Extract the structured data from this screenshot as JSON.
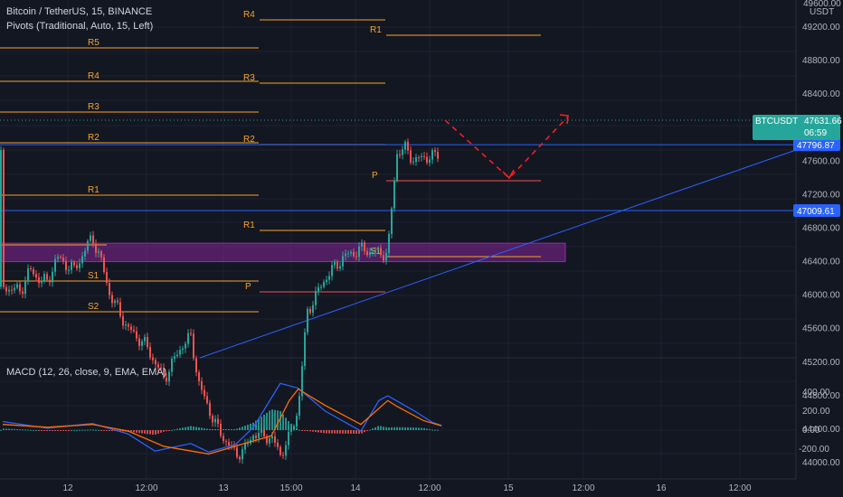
{
  "header": {
    "symbol_title": "Bitcoin / TetherUS, 15, BINANCE",
    "pivots_title": "Pivots (Traditional, Auto, 15, Left)",
    "macd_title": "MACD (12, 26, close, 9, EMA, EMA)"
  },
  "price_axis": {
    "unit": "USDT",
    "top_partial": "49600.00",
    "ticks": [
      "49200.00",
      "48800.00",
      "48400.00",
      "48000.00",
      "47600.00",
      "47200.00",
      "46800.00",
      "46400.00",
      "46000.00",
      "45600.00",
      "45200.00",
      "44800.00",
      "44400.00",
      "44000.00"
    ],
    "upper_line_label": "47796.87",
    "lower_line_label": "47009.61",
    "last_symbol": "BTCUSDT",
    "last_price": "47631.66",
    "countdown": "06:59"
  },
  "macd_axis": {
    "ticks": [
      "400.00",
      "200.00",
      "0.00",
      "-200.00"
    ]
  },
  "time_axis": {
    "ticks": [
      "12",
      "12:00",
      "13",
      "15:00",
      "14",
      "12:00",
      "15",
      "12:00",
      "16",
      "12:00"
    ]
  },
  "pivot_labels": {
    "d1": [
      "R5",
      "R4",
      "R3",
      "R2",
      "R1",
      "S1",
      "S2"
    ],
    "d2": [
      "R4",
      "R3",
      "R2",
      "P",
      "R1"
    ],
    "d3": [
      "R1",
      "P",
      "S1"
    ]
  },
  "colors": {
    "background": "#131722",
    "up": "#26a69a",
    "down": "#ef5350",
    "pivot": "#f7a427",
    "pivot_p": "#ef5350",
    "trend": "#2962ff",
    "zone": "#9c27b0",
    "projection": "#ff1f1f",
    "macd": "#2962ff",
    "signal": "#ff6d00"
  },
  "chart_data": {
    "type": "candlestick",
    "title": "Bitcoin / TetherUS, 15, BINANCE",
    "y_range": [
      43850,
      49700
    ],
    "close_path": [
      [
        0,
        46100
      ],
      [
        2,
        46050
      ],
      [
        3,
        46300
      ],
      [
        4,
        46200
      ],
      [
        5,
        46150
      ],
      [
        6,
        46450
      ],
      [
        8,
        46300
      ],
      [
        9,
        46500
      ],
      [
        10,
        46700
      ],
      [
        11,
        46400
      ],
      [
        12,
        46000
      ],
      [
        13,
        45800
      ],
      [
        14,
        45600
      ],
      [
        16,
        45400
      ],
      [
        18,
        45000
      ],
      [
        19,
        45200
      ],
      [
        20,
        45400
      ],
      [
        21,
        45500
      ],
      [
        22,
        44900
      ],
      [
        24,
        44400
      ],
      [
        26,
        44100
      ],
      [
        27,
        44150
      ],
      [
        28,
        44350
      ],
      [
        30,
        44300
      ],
      [
        31,
        44100
      ],
      [
        32,
        44300
      ],
      [
        33,
        44650
      ],
      [
        34,
        45800
      ],
      [
        35,
        46000
      ],
      [
        36,
        46200
      ],
      [
        38,
        46450
      ],
      [
        40,
        46550
      ],
      [
        42,
        46500
      ],
      [
        43,
        46500
      ],
      [
        44,
        47700
      ],
      [
        45,
        47750
      ],
      [
        46,
        47600
      ],
      [
        47,
        47650
      ],
      [
        48,
        47650
      ],
      [
        49,
        47700
      ],
      [
        50,
        47600
      ],
      [
        51,
        47650
      ]
    ],
    "horizontal_lines": [
      47796.87,
      47009.61
    ],
    "zone": [
      46620,
      46400
    ],
    "macd": {
      "y_range": [
        -290,
        500
      ],
      "macd_path": [
        [
          0,
          90
        ],
        [
          5,
          20
        ],
        [
          10,
          70
        ],
        [
          14,
          -40
        ],
        [
          17,
          -220
        ],
        [
          21,
          -140
        ],
        [
          23,
          -230
        ],
        [
          26,
          -150
        ],
        [
          28,
          30
        ],
        [
          31,
          490
        ],
        [
          33,
          440
        ],
        [
          36,
          200
        ],
        [
          40,
          -10
        ],
        [
          42,
          310
        ],
        [
          43,
          360
        ],
        [
          46,
          200
        ],
        [
          48,
          80
        ],
        [
          49,
          50
        ]
      ],
      "signal_path": [
        [
          0,
          60
        ],
        [
          5,
          30
        ],
        [
          10,
          60
        ],
        [
          14,
          -10
        ],
        [
          18,
          -170
        ],
        [
          23,
          -250
        ],
        [
          27,
          -140
        ],
        [
          30,
          -60
        ],
        [
          32,
          310
        ],
        [
          33,
          430
        ],
        [
          36,
          260
        ],
        [
          40,
          60
        ],
        [
          43,
          310
        ],
        [
          44,
          250
        ],
        [
          47,
          100
        ],
        [
          49,
          45
        ]
      ]
    }
  }
}
